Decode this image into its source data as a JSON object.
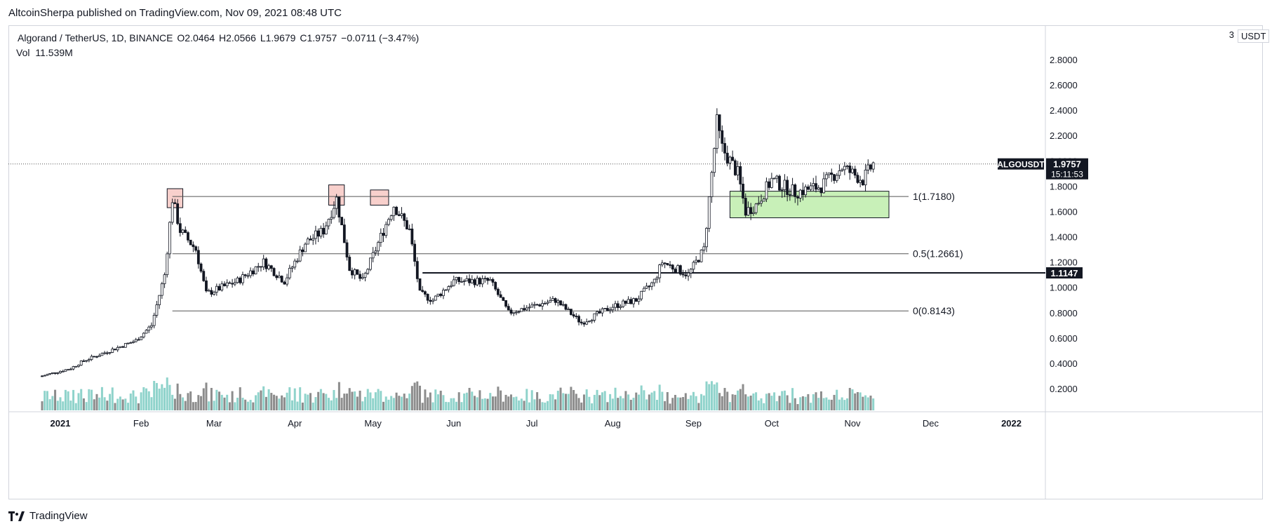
{
  "header": {
    "publisher": "AltcoinSherpa published on TradingView.com, Nov 09, 2021 08:48 UTC"
  },
  "legend": {
    "symbol": "Algorand / TetherUS, 1D, BINANCE",
    "open": "O2.0464",
    "high": "H2.0566",
    "low": "L1.9679",
    "close": "C1.9757",
    "change": "−0.0711 (−3.47%)",
    "volume_label": "Vol",
    "volume_value": "11.539M"
  },
  "price_axis": {
    "currency": "USDT",
    "top_partial": "3"
  },
  "footer": {
    "brand": "TradingView"
  },
  "colors": {
    "up": "#26a69a",
    "down": "#ef5350",
    "candle": "#131722",
    "green_zone": "#c8f0b8",
    "red_zone": "#f8d0cc"
  },
  "chart_data": {
    "type": "candlestick",
    "title": "Algorand / TetherUS, 1D, BINANCE",
    "ylim": [
      0.08,
      3.0
    ],
    "y_ticks": [
      "0.2000",
      "0.4000",
      "0.6000",
      "0.8000",
      "1.0000",
      "1.2000",
      "1.4000",
      "1.6000",
      "1.8000",
      "2.0000",
      "2.2000",
      "2.4000",
      "2.6000",
      "2.8000"
    ],
    "x_ticks": [
      "2021",
      "Feb",
      "Mar",
      "Apr",
      "May",
      "Jun",
      "Jul",
      "Aug",
      "Sep",
      "Oct",
      "Nov",
      "Dec",
      "2022"
    ],
    "last_price": {
      "symbol": "ALGOUSDT",
      "value": "1.9757",
      "countdown": "15:11:53"
    },
    "fib_levels": [
      {
        "label": "1(1.7180)",
        "value": 1.718
      },
      {
        "label": "0.5(1.2661)",
        "value": 1.2661
      },
      {
        "label": "0(0.8143)",
        "value": 0.8143
      }
    ],
    "horizontal_line": {
      "value": 1.1147,
      "label": "1.1147"
    },
    "anchors": [
      {
        "date": "2020-12-25",
        "price": 0.3
      },
      {
        "date": "2021-01-05",
        "price": 0.36
      },
      {
        "date": "2021-01-10",
        "price": 0.42
      },
      {
        "date": "2021-01-20",
        "price": 0.5
      },
      {
        "date": "2021-01-30",
        "price": 0.58
      },
      {
        "date": "2021-02-05",
        "price": 0.7
      },
      {
        "date": "2021-02-10",
        "price": 1.1
      },
      {
        "date": "2021-02-13",
        "price": 1.7
      },
      {
        "date": "2021-02-16",
        "price": 1.45
      },
      {
        "date": "2021-02-22",
        "price": 1.3
      },
      {
        "date": "2021-02-26",
        "price": 0.95
      },
      {
        "date": "2021-03-10",
        "price": 1.05
      },
      {
        "date": "2021-03-20",
        "price": 1.2
      },
      {
        "date": "2021-03-28",
        "price": 1.05
      },
      {
        "date": "2021-04-05",
        "price": 1.35
      },
      {
        "date": "2021-04-12",
        "price": 1.45
      },
      {
        "date": "2021-04-17",
        "price": 1.7
      },
      {
        "date": "2021-04-22",
        "price": 1.15
      },
      {
        "date": "2021-04-27",
        "price": 1.05
      },
      {
        "date": "2021-05-05",
        "price": 1.45
      },
      {
        "date": "2021-05-09",
        "price": 1.65
      },
      {
        "date": "2021-05-15",
        "price": 1.45
      },
      {
        "date": "2021-05-19",
        "price": 0.95
      },
      {
        "date": "2021-05-24",
        "price": 0.9
      },
      {
        "date": "2021-06-01",
        "price": 1.05
      },
      {
        "date": "2021-06-15",
        "price": 1.05
      },
      {
        "date": "2021-06-22",
        "price": 0.8
      },
      {
        "date": "2021-07-01",
        "price": 0.85
      },
      {
        "date": "2021-07-10",
        "price": 0.9
      },
      {
        "date": "2021-07-20",
        "price": 0.72
      },
      {
        "date": "2021-08-01",
        "price": 0.85
      },
      {
        "date": "2021-08-10",
        "price": 0.9
      },
      {
        "date": "2021-08-17",
        "price": 1.05
      },
      {
        "date": "2021-08-20",
        "price": 1.2
      },
      {
        "date": "2021-08-30",
        "price": 1.1
      },
      {
        "date": "2021-09-05",
        "price": 1.3
      },
      {
        "date": "2021-09-08",
        "price": 1.9
      },
      {
        "date": "2021-09-10",
        "price": 2.3
      },
      {
        "date": "2021-09-12",
        "price": 2.1
      },
      {
        "date": "2021-09-18",
        "price": 1.9
      },
      {
        "date": "2021-09-21",
        "price": 1.6
      },
      {
        "date": "2021-09-25",
        "price": 1.65
      },
      {
        "date": "2021-10-01",
        "price": 1.85
      },
      {
        "date": "2021-10-10",
        "price": 1.75
      },
      {
        "date": "2021-10-20",
        "price": 1.8
      },
      {
        "date": "2021-10-28",
        "price": 1.95
      },
      {
        "date": "2021-11-05",
        "price": 1.85
      },
      {
        "date": "2021-11-09",
        "price": 1.9757
      }
    ],
    "highlight_zones": [
      {
        "kind": "red",
        "date_from": "2021-02-11",
        "date_to": "2021-02-17",
        "price_from": 1.63,
        "price_to": 1.78
      },
      {
        "kind": "red",
        "date_from": "2021-04-14",
        "date_to": "2021-04-20",
        "price_from": 1.65,
        "price_to": 1.81
      },
      {
        "kind": "red",
        "date_from": "2021-04-30",
        "date_to": "2021-05-07",
        "price_from": 1.65,
        "price_to": 1.77
      },
      {
        "kind": "green",
        "date_from": "2021-09-15",
        "date_to": "2021-11-15",
        "price_from": 1.55,
        "price_to": 1.76
      }
    ]
  }
}
